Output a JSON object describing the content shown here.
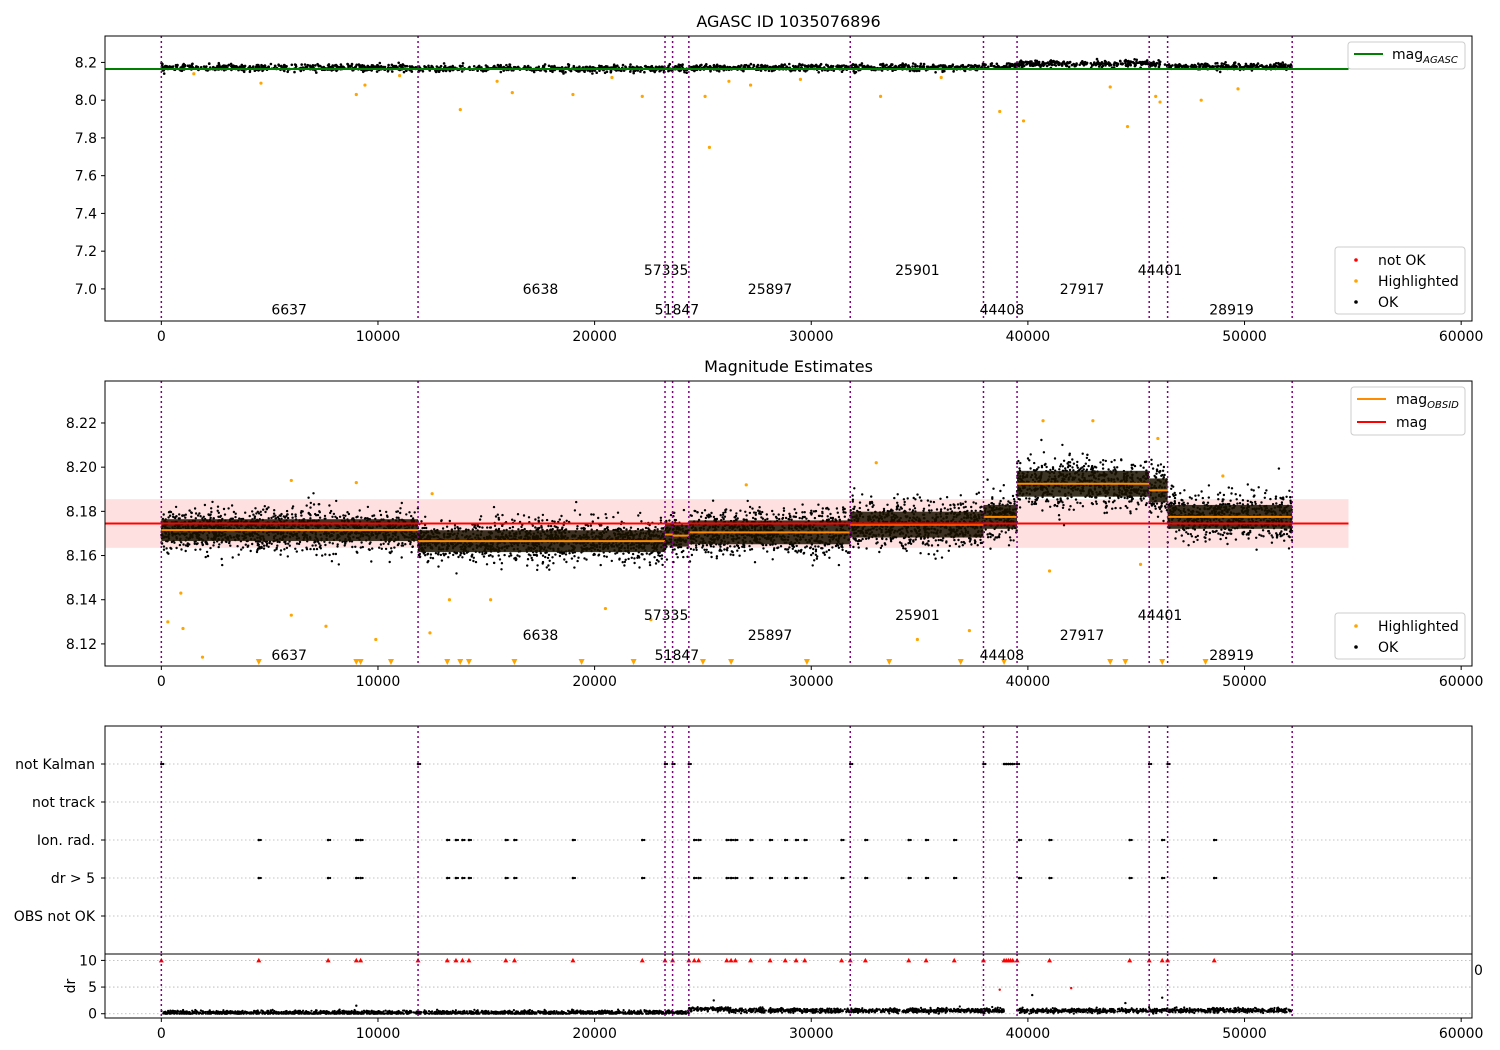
{
  "chart_data": [
    {
      "type": "scatter",
      "title": "AGASC ID 1035076896",
      "xlim": [
        -2600,
        60500
      ],
      "ylim": [
        6.83,
        8.34
      ],
      "xticks": [
        0,
        10000,
        20000,
        30000,
        40000,
        50000,
        60000
      ],
      "xtick_labels": [
        "0",
        "10000",
        "20000",
        "30000",
        "40000",
        "50000",
        "60000"
      ],
      "yticks": [
        7.0,
        7.2,
        7.4,
        7.6,
        7.8,
        8.0,
        8.2
      ],
      "ytick_labels": [
        "7.0",
        "7.2",
        "7.4",
        "7.6",
        "7.8",
        "8.0",
        "8.2"
      ],
      "boundaries": [
        0,
        11850,
        23250,
        23600,
        24350,
        31800,
        37950,
        39500,
        45600,
        46450,
        52200
      ],
      "segments": [
        {
          "x0": 0,
          "x1": 11850,
          "y": 8.172
        },
        {
          "x0": 11850,
          "x1": 23250,
          "y": 8.167
        },
        {
          "x0": 23250,
          "x1": 23600,
          "y": 8.169
        },
        {
          "x0": 23600,
          "x1": 24350,
          "y": 8.169
        },
        {
          "x0": 24350,
          "x1": 31800,
          "y": 8.171
        },
        {
          "x0": 31800,
          "x1": 37950,
          "y": 8.174
        },
        {
          "x0": 37950,
          "x1": 39500,
          "y": 8.178
        },
        {
          "x0": 39500,
          "x1": 45600,
          "y": 8.193
        },
        {
          "x0": 45600,
          "x1": 46450,
          "y": 8.189
        },
        {
          "x0": 46450,
          "x1": 52200,
          "y": 8.177
        }
      ],
      "obsid_labels": [
        {
          "x": 5900,
          "y": 6.89,
          "text": "6637"
        },
        {
          "x": 17500,
          "y": 7.0,
          "text": "6638"
        },
        {
          "x": 23300,
          "y": 7.1,
          "text": "57335"
        },
        {
          "x": 23800,
          "y": 6.89,
          "text": "51847"
        },
        {
          "x": 28100,
          "y": 7.0,
          "text": "25897"
        },
        {
          "x": 34900,
          "y": 7.1,
          "text": "25901"
        },
        {
          "x": 38800,
          "y": 6.89,
          "text": "44408"
        },
        {
          "x": 42500,
          "y": 7.0,
          "text": "27917"
        },
        {
          "x": 46100,
          "y": 7.1,
          "text": "44401"
        },
        {
          "x": 49400,
          "y": 6.89,
          "text": "28919"
        }
      ],
      "reference_line": {
        "name": "mag_AGASC",
        "y": 8.165,
        "x0": -2600,
        "x1": 54800,
        "color": "#008000"
      },
      "highlighted_points": [
        {
          "x": 1500,
          "y": 8.14
        },
        {
          "x": 4600,
          "y": 8.09
        },
        {
          "x": 9000,
          "y": 8.03
        },
        {
          "x": 9400,
          "y": 8.08
        },
        {
          "x": 11000,
          "y": 8.13
        },
        {
          "x": 13800,
          "y": 7.95
        },
        {
          "x": 15500,
          "y": 8.1
        },
        {
          "x": 16200,
          "y": 8.04
        },
        {
          "x": 19000,
          "y": 8.03
        },
        {
          "x": 20800,
          "y": 8.12
        },
        {
          "x": 22200,
          "y": 8.02
        },
        {
          "x": 25300,
          "y": 7.75
        },
        {
          "x": 25100,
          "y": 8.02
        },
        {
          "x": 26200,
          "y": 8.1
        },
        {
          "x": 27200,
          "y": 8.08
        },
        {
          "x": 29500,
          "y": 8.11
        },
        {
          "x": 33200,
          "y": 8.02
        },
        {
          "x": 36000,
          "y": 8.12
        },
        {
          "x": 38700,
          "y": 7.94
        },
        {
          "x": 39800,
          "y": 7.89
        },
        {
          "x": 43800,
          "y": 8.07
        },
        {
          "x": 44600,
          "y": 7.86
        },
        {
          "x": 45900,
          "y": 8.02
        },
        {
          "x": 46100,
          "y": 7.99
        },
        {
          "x": 48000,
          "y": 8.0
        },
        {
          "x": 49700,
          "y": 8.06
        }
      ],
      "legends": [
        {
          "position": "upper right",
          "entries": [
            "mag_AGASC"
          ]
        },
        {
          "position": "lower right",
          "entries": [
            "not OK",
            "Highlighted",
            "OK"
          ]
        }
      ]
    },
    {
      "type": "scatter",
      "title": "Magnitude Estimates",
      "xlim": [
        -2600,
        60500
      ],
      "ylim": [
        8.11,
        8.239
      ],
      "xticks": [
        0,
        10000,
        20000,
        30000,
        40000,
        50000,
        60000
      ],
      "xtick_labels": [
        "0",
        "10000",
        "20000",
        "30000",
        "40000",
        "50000",
        "60000"
      ],
      "yticks": [
        8.12,
        8.14,
        8.16,
        8.18,
        8.2,
        8.22
      ],
      "ytick_labels": [
        "8.12",
        "8.14",
        "8.16",
        "8.18",
        "8.20",
        "8.22"
      ],
      "mag_line": {
        "name": "mag",
        "y": 8.1745,
        "x0": -2600,
        "x1": 54800,
        "band": [
          8.1635,
          8.1855
        ],
        "color": "#ff0000"
      },
      "segments": [
        {
          "x0": 0,
          "x1": 11850,
          "y": 8.1715,
          "sd": 0.0055
        },
        {
          "x0": 11850,
          "x1": 23250,
          "y": 8.1665,
          "sd": 0.0055
        },
        {
          "x0": 23250,
          "x1": 23600,
          "y": 8.1695,
          "sd": 0.0055
        },
        {
          "x0": 23600,
          "x1": 24350,
          "y": 8.169,
          "sd": 0.0055
        },
        {
          "x0": 24350,
          "x1": 31800,
          "y": 8.1705,
          "sd": 0.006
        },
        {
          "x0": 31800,
          "x1": 37950,
          "y": 8.174,
          "sd": 0.0065
        },
        {
          "x0": 37950,
          "x1": 39500,
          "y": 8.1775,
          "sd": 0.006
        },
        {
          "x0": 39500,
          "x1": 45600,
          "y": 8.1925,
          "sd": 0.0065
        },
        {
          "x0": 45600,
          "x1": 46450,
          "y": 8.1895,
          "sd": 0.006
        },
        {
          "x0": 46450,
          "x1": 52200,
          "y": 8.1775,
          "sd": 0.006
        }
      ],
      "obsid_labels": [
        {
          "x": 5900,
          "y": 8.115,
          "text": "6637"
        },
        {
          "x": 17500,
          "y": 8.124,
          "text": "6638"
        },
        {
          "x": 23300,
          "y": 8.133,
          "text": "57335"
        },
        {
          "x": 23800,
          "y": 8.115,
          "text": "51847"
        },
        {
          "x": 28100,
          "y": 8.124,
          "text": "25897"
        },
        {
          "x": 34900,
          "y": 8.133,
          "text": "25901"
        },
        {
          "x": 38800,
          "y": 8.115,
          "text": "44408"
        },
        {
          "x": 42500,
          "y": 8.124,
          "text": "27917"
        },
        {
          "x": 46100,
          "y": 8.133,
          "text": "44401"
        },
        {
          "x": 49400,
          "y": 8.115,
          "text": "28919"
        }
      ],
      "highlighted_points": [
        {
          "x": 300,
          "y": 8.13
        },
        {
          "x": 900,
          "y": 8.143
        },
        {
          "x": 1000,
          "y": 8.127
        },
        {
          "x": 1900,
          "y": 8.114
        },
        {
          "x": 6000,
          "y": 8.133
        },
        {
          "x": 7600,
          "y": 8.128
        },
        {
          "x": 9900,
          "y": 8.122
        },
        {
          "x": 12400,
          "y": 8.125
        },
        {
          "x": 13300,
          "y": 8.14
        },
        {
          "x": 15200,
          "y": 8.14
        },
        {
          "x": 20500,
          "y": 8.136
        },
        {
          "x": 22600,
          "y": 8.131
        },
        {
          "x": 34900,
          "y": 8.122
        },
        {
          "x": 37300,
          "y": 8.126
        },
        {
          "x": 41000,
          "y": 8.153
        },
        {
          "x": 45200,
          "y": 8.156
        },
        {
          "x": 6000,
          "y": 8.194
        },
        {
          "x": 9000,
          "y": 8.193
        },
        {
          "x": 12500,
          "y": 8.188
        },
        {
          "x": 27000,
          "y": 8.192
        },
        {
          "x": 33000,
          "y": 8.202
        },
        {
          "x": 40700,
          "y": 8.221
        },
        {
          "x": 43000,
          "y": 8.221
        },
        {
          "x": 46000,
          "y": 8.213
        },
        {
          "x": 49000,
          "y": 8.196
        }
      ],
      "lower_limit_markers": [
        4500,
        9000,
        9200,
        10600,
        13200,
        13800,
        14200,
        16300,
        19400,
        21800,
        25000,
        26300,
        29800,
        33600,
        36900,
        38900,
        43800,
        44500,
        46200,
        48200
      ],
      "legends": [
        {
          "position": "upper right",
          "entries": [
            "mag_OBSID",
            "mag"
          ]
        },
        {
          "position": "lower right",
          "entries": [
            "Highlighted",
            "OK"
          ]
        }
      ]
    },
    {
      "type": "scatter",
      "title": "",
      "xlim": [
        -2600,
        60500
      ],
      "yticks": [
        "not Kalman",
        "not track",
        "Ion. rad.",
        "dr > 5",
        "OBS not OK"
      ],
      "grid": "horizontal dotted",
      "flag_points": {
        "not Kalman": [
          0,
          11850,
          23250,
          23600,
          24350,
          31800,
          37950,
          38900,
          39000,
          39100,
          39200,
          39300,
          39500,
          45600,
          46450
        ],
        "Ion. rad.": [
          4500,
          7700,
          9000,
          9200,
          13200,
          13600,
          13900,
          14200,
          15900,
          16300,
          19000,
          22200,
          24600,
          24800,
          26100,
          26300,
          26500,
          27200,
          28100,
          28800,
          29300,
          29700,
          31400,
          32500,
          34500,
          35300,
          36600,
          39600,
          41000,
          44700,
          46200,
          48600
        ],
        "dr > 5": [
          4500,
          7700,
          9000,
          9200,
          13200,
          13600,
          13900,
          14200,
          15900,
          16300,
          19000,
          22200,
          24600,
          24800,
          26100,
          26300,
          26500,
          27200,
          28100,
          28800,
          29300,
          29700,
          31400,
          32500,
          34500,
          35300,
          36600,
          39600,
          41000,
          44700,
          46200,
          48600
        ]
      }
    },
    {
      "type": "scatter",
      "title": "",
      "xlim": [
        -2600,
        60500
      ],
      "ylim": [
        -0.8,
        11.2
      ],
      "ylabel": "dr",
      "xticks": [
        0,
        10000,
        20000,
        30000,
        40000,
        50000,
        60000
      ],
      "xtick_labels": [
        "0",
        "10000",
        "20000",
        "30000",
        "40000",
        "50000",
        "60000"
      ],
      "yticks": [
        0,
        5,
        10
      ],
      "ytick_labels": [
        "0",
        "5",
        "10"
      ],
      "dr_baseline": [
        {
          "x0": 0,
          "x1": 24350,
          "y": 0.2
        },
        {
          "x0": 24350,
          "x1": 26200,
          "y": 0.9
        },
        {
          "x0": 26200,
          "x1": 38900,
          "y": 0.6
        },
        {
          "x0": 39500,
          "x1": 52200,
          "y": 0.6
        }
      ],
      "clipped_markers": [
        0,
        4500,
        7700,
        9000,
        9200,
        11850,
        13200,
        13600,
        13900,
        14200,
        15900,
        16300,
        19000,
        22200,
        23250,
        23600,
        24350,
        24600,
        24800,
        26100,
        26300,
        26500,
        27200,
        28100,
        28800,
        29300,
        29700,
        31400,
        31800,
        32500,
        34500,
        35300,
        36600,
        37950,
        38900,
        39000,
        39100,
        39200,
        39300,
        39500,
        41000,
        44700,
        45600,
        46200,
        46450,
        48600
      ],
      "outlier_points": [
        {
          "x": 38700,
          "y": 4.5
        },
        {
          "x": 40200,
          "y": 3.5
        },
        {
          "x": 42000,
          "y": 4.8
        },
        {
          "x": 46200,
          "y": 3.0
        },
        {
          "x": 25500,
          "y": 2.5
        },
        {
          "x": 9000,
          "y": 1.5
        },
        {
          "x": 44500,
          "y": 2.0
        }
      ],
      "clipped_right_label": "0"
    }
  ],
  "legend_labels": {
    "mag_agasc_main": "mag",
    "mag_agasc_sub": "AGASC",
    "mag_obsid_main": "mag",
    "mag_obsid_sub": "OBSID",
    "mag": "mag",
    "not_ok": "not OK",
    "highlighted": "Highlighted",
    "ok": "OK"
  },
  "colors": {
    "ok": "#000000",
    "highlighted": "#ffa500",
    "not_ok": "#ff0000",
    "mag_agasc": "#008000",
    "mag_obsid": "#ff8c00",
    "mag": "#ff0000",
    "mag_band": "#ffcccc",
    "boundary": "#800080",
    "obsid_box": "#1a1200"
  }
}
